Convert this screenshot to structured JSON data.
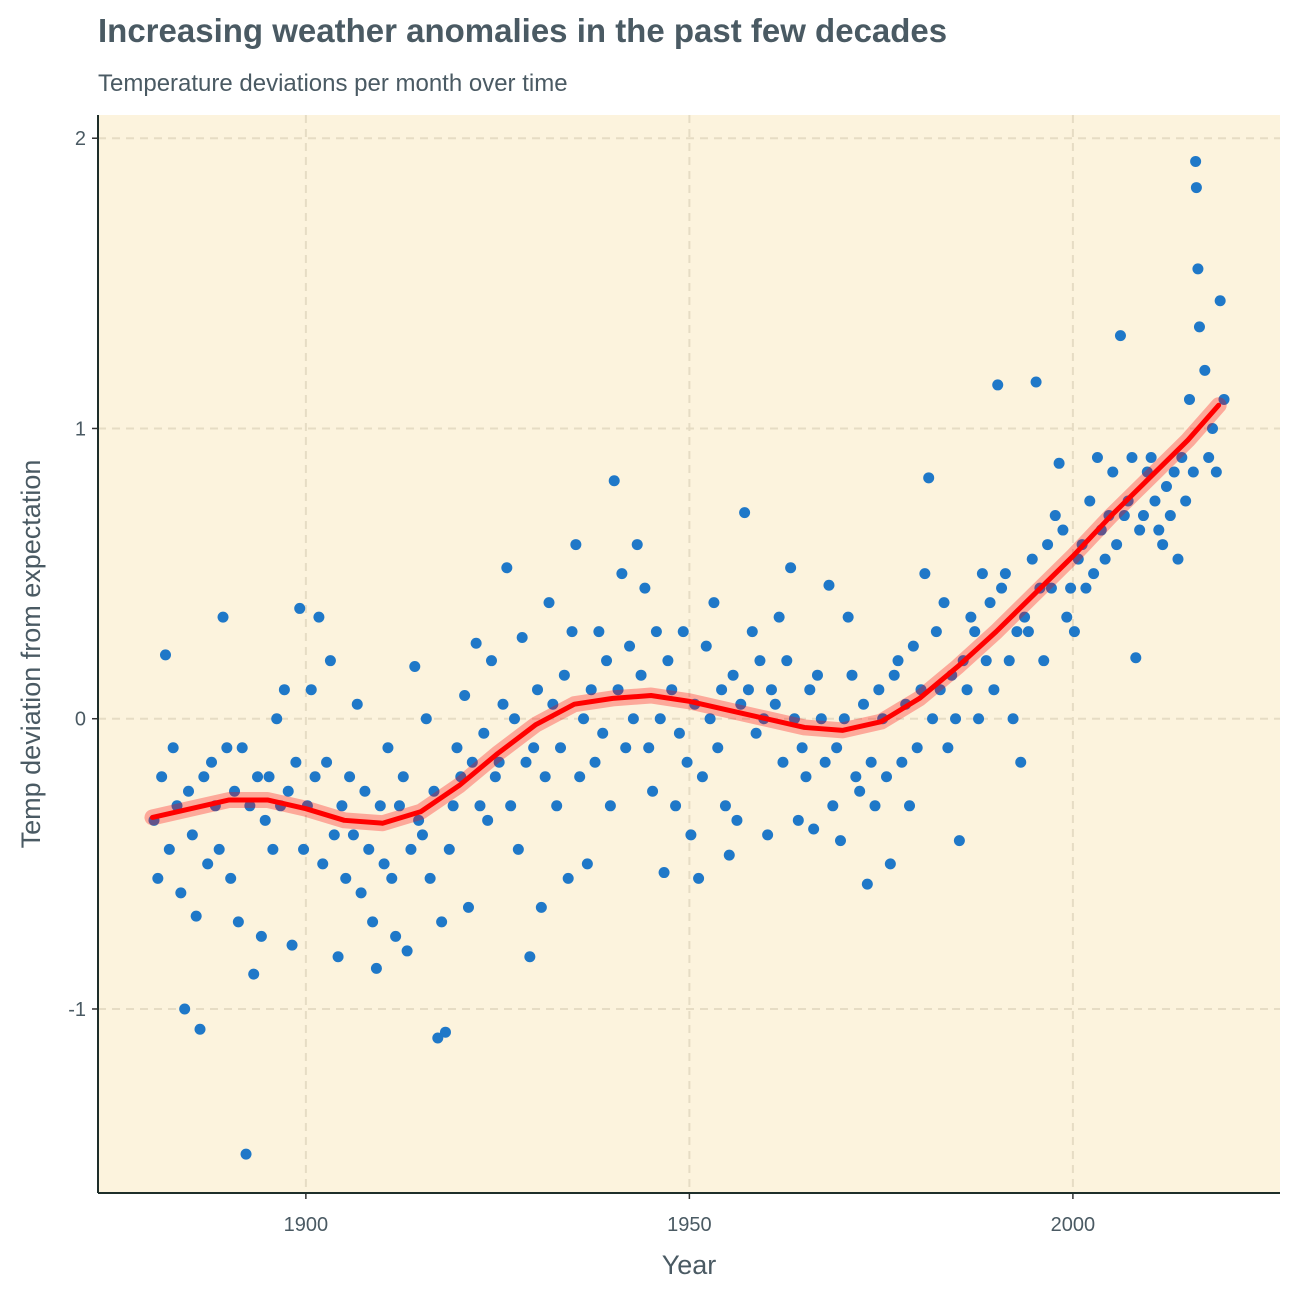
{
  "chart_data": {
    "type": "scatter",
    "title": "Increasing weather anomalies in the past few decades",
    "subtitle": "Temperature deviations per month over time",
    "x_label": "Year",
    "y_label": "Temp deviation from expectation",
    "xlim": [
      1872.9,
      2027
    ],
    "ylim": [
      -1.634,
      2.08
    ],
    "xticks": [
      1900,
      1950,
      2000
    ],
    "yticks": [
      -1,
      0,
      1,
      2
    ],
    "grid": true,
    "background": "#fcf3dd",
    "points": {
      "color": "#1f78c8",
      "x": [
        1880.2,
        1880.7,
        1881.2,
        1881.7,
        1882.2,
        1882.7,
        1883.2,
        1883.7,
        1884.2,
        1884.7,
        1885.2,
        1885.7,
        1886.2,
        1886.7,
        1887.2,
        1887.7,
        1888.2,
        1888.7,
        1889.2,
        1889.7,
        1890.2,
        1890.7,
        1891.2,
        1891.7,
        1892.2,
        1892.7,
        1893.2,
        1893.7,
        1894.2,
        1894.7,
        1895.2,
        1895.7,
        1896.2,
        1896.7,
        1897.2,
        1897.7,
        1898.2,
        1898.7,
        1899.2,
        1899.7,
        1900.2,
        1900.7,
        1901.2,
        1901.7,
        1902.2,
        1902.7,
        1903.2,
        1903.7,
        1904.2,
        1904.7,
        1905.2,
        1905.7,
        1906.2,
        1906.7,
        1907.2,
        1907.7,
        1908.2,
        1908.7,
        1909.2,
        1909.7,
        1910.2,
        1910.7,
        1911.2,
        1911.7,
        1912.2,
        1912.7,
        1913.2,
        1913.7,
        1914.2,
        1914.7,
        1915.2,
        1915.7,
        1916.2,
        1916.7,
        1917.2,
        1917.7,
        1918.2,
        1918.7,
        1919.2,
        1919.7,
        1920.2,
        1920.7,
        1921.2,
        1921.7,
        1922.2,
        1922.7,
        1923.2,
        1923.7,
        1924.2,
        1924.7,
        1925.2,
        1925.7,
        1926.2,
        1926.7,
        1927.2,
        1927.7,
        1928.2,
        1928.7,
        1929.2,
        1929.7,
        1930.2,
        1930.7,
        1931.2,
        1931.7,
        1932.2,
        1932.7,
        1933.2,
        1933.7,
        1934.2,
        1934.7,
        1935.2,
        1935.7,
        1936.2,
        1936.7,
        1937.2,
        1937.7,
        1938.2,
        1938.7,
        1939.2,
        1939.7,
        1940.2,
        1940.7,
        1941.2,
        1941.7,
        1942.2,
        1942.7,
        1943.2,
        1943.7,
        1944.2,
        1944.7,
        1945.2,
        1945.7,
        1946.2,
        1946.7,
        1947.2,
        1947.7,
        1948.2,
        1948.7,
        1949.2,
        1949.7,
        1950.2,
        1950.7,
        1951.2,
        1951.7,
        1952.2,
        1952.7,
        1953.2,
        1953.7,
        1954.2,
        1954.7,
        1955.2,
        1955.7,
        1956.2,
        1956.7,
        1957.2,
        1957.7,
        1958.2,
        1958.7,
        1959.2,
        1959.7,
        1960.2,
        1960.7,
        1961.2,
        1961.7,
        1962.2,
        1962.7,
        1963.2,
        1963.7,
        1964.2,
        1964.7,
        1965.2,
        1965.7,
        1966.2,
        1966.7,
        1967.2,
        1967.7,
        1968.2,
        1968.7,
        1969.2,
        1969.7,
        1970.2,
        1970.7,
        1971.2,
        1971.7,
        1972.2,
        1972.7,
        1973.2,
        1973.7,
        1974.2,
        1974.7,
        1975.2,
        1975.7,
        1976.2,
        1976.7,
        1977.2,
        1977.7,
        1978.2,
        1978.7,
        1979.2,
        1979.7,
        1980.2,
        1980.7,
        1981.2,
        1981.7,
        1982.2,
        1982.7,
        1983.2,
        1983.7,
        1984.2,
        1984.7,
        1985.2,
        1985.7,
        1986.2,
        1986.7,
        1987.2,
        1987.7,
        1988.2,
        1988.7,
        1989.2,
        1989.7,
        1990.2,
        1990.7,
        1991.2,
        1991.7,
        1992.2,
        1992.7,
        1993.2,
        1993.7,
        1994.2,
        1994.7,
        1995.2,
        1995.7,
        1996.2,
        1996.7,
        1997.2,
        1997.7,
        1998.2,
        1998.7,
        1999.2,
        1999.7,
        2000.2,
        2000.7,
        2001.2,
        2001.7,
        2002.2,
        2002.7,
        2003.2,
        2003.7,
        2004.2,
        2004.7,
        2005.2,
        2005.7,
        2006.2,
        2006.7,
        2007.2,
        2007.7,
        2008.2,
        2008.7,
        2009.2,
        2009.7,
        2010.2,
        2010.7,
        2011.2,
        2011.7,
        2012.2,
        2012.7,
        2013.2,
        2013.7,
        2014.2,
        2014.7,
        2015.2,
        2015.7,
        2016.0,
        2016.1,
        2016.3,
        2016.5,
        2017.2,
        2017.7,
        2018.2,
        2018.7,
        2019.2,
        2019.7
      ],
      "values": [
        -0.35,
        -0.55,
        -0.2,
        0.22,
        -0.45,
        -0.1,
        -0.3,
        -0.6,
        -1.0,
        -0.25,
        -0.4,
        -0.68,
        -1.07,
        -0.2,
        -0.5,
        -0.15,
        -0.3,
        -0.45,
        0.35,
        -0.1,
        -0.55,
        -0.25,
        -0.7,
        -0.1,
        -1.5,
        -0.3,
        -0.88,
        -0.2,
        -0.75,
        -0.35,
        -0.2,
        -0.45,
        0.0,
        -0.3,
        0.1,
        -0.25,
        -0.78,
        -0.15,
        0.38,
        -0.45,
        -0.3,
        0.1,
        -0.2,
        0.35,
        -0.5,
        -0.15,
        0.2,
        -0.4,
        -0.82,
        -0.3,
        -0.55,
        -0.2,
        -0.4,
        0.05,
        -0.6,
        -0.25,
        -0.45,
        -0.7,
        -0.86,
        -0.3,
        -0.5,
        -0.1,
        -0.55,
        -0.75,
        -0.3,
        -0.2,
        -0.8,
        -0.45,
        0.18,
        -0.35,
        -0.4,
        0.0,
        -0.55,
        -0.25,
        -1.1,
        -0.7,
        -1.08,
        -0.45,
        -0.3,
        -0.1,
        -0.2,
        0.08,
        -0.65,
        -0.15,
        0.26,
        -0.3,
        -0.05,
        -0.35,
        0.2,
        -0.2,
        -0.15,
        0.05,
        0.52,
        -0.3,
        0.0,
        -0.45,
        0.28,
        -0.15,
        -0.82,
        -0.1,
        0.1,
        -0.65,
        -0.2,
        0.4,
        0.05,
        -0.3,
        -0.1,
        0.15,
        -0.55,
        0.3,
        0.6,
        -0.2,
        0.0,
        -0.5,
        0.1,
        -0.15,
        0.3,
        -0.05,
        0.2,
        -0.3,
        0.82,
        0.1,
        0.5,
        -0.1,
        0.25,
        0.0,
        0.6,
        0.15,
        0.45,
        -0.1,
        -0.25,
        0.3,
        0.0,
        -0.53,
        0.2,
        0.1,
        -0.3,
        -0.05,
        0.3,
        -0.15,
        -0.4,
        0.05,
        -0.55,
        -0.2,
        0.25,
        0.0,
        0.4,
        -0.1,
        0.1,
        -0.3,
        -0.47,
        0.15,
        -0.35,
        0.05,
        0.71,
        0.1,
        0.3,
        -0.05,
        0.2,
        0.0,
        -0.4,
        0.1,
        0.05,
        0.35,
        -0.15,
        0.2,
        0.52,
        0.0,
        -0.35,
        -0.1,
        -0.2,
        0.1,
        -0.38,
        0.15,
        0.0,
        -0.15,
        0.46,
        -0.3,
        -0.1,
        -0.42,
        0.0,
        0.35,
        0.15,
        -0.2,
        -0.25,
        0.05,
        -0.57,
        -0.15,
        -0.3,
        0.1,
        0.0,
        -0.2,
        -0.5,
        0.15,
        0.2,
        -0.15,
        0.05,
        -0.3,
        0.25,
        -0.1,
        0.1,
        0.5,
        0.83,
        0.0,
        0.3,
        0.1,
        0.4,
        -0.1,
        0.15,
        0.0,
        -0.42,
        0.2,
        0.1,
        0.35,
        0.3,
        0.0,
        0.5,
        0.2,
        0.4,
        0.1,
        1.15,
        0.45,
        0.5,
        0.2,
        0.0,
        0.3,
        -0.15,
        0.35,
        0.3,
        0.55,
        1.16,
        0.45,
        0.2,
        0.6,
        0.45,
        0.7,
        0.88,
        0.65,
        0.35,
        0.45,
        0.3,
        0.55,
        0.6,
        0.45,
        0.75,
        0.5,
        0.9,
        0.65,
        0.55,
        0.7,
        0.85,
        0.6,
        1.32,
        0.7,
        0.75,
        0.9,
        0.21,
        0.65,
        0.7,
        0.85,
        0.9,
        0.75,
        0.65,
        0.6,
        0.8,
        0.7,
        0.85,
        0.55,
        0.9,
        0.75,
        1.1,
        0.85,
        1.92,
        1.83,
        1.55,
        1.35,
        1.2,
        0.9,
        1.0,
        0.85,
        1.44,
        1.1
      ]
    },
    "trend": {
      "color": "#ff0000",
      "x": [
        1880,
        1885,
        1890,
        1895,
        1900,
        1905,
        1910,
        1915,
        1920,
        1925,
        1930,
        1935,
        1940,
        1945,
        1950,
        1955,
        1960,
        1965,
        1970,
        1975,
        1980,
        1985,
        1990,
        1995,
        2000,
        2005,
        2010,
        2015,
        2019
      ],
      "values": [
        -0.34,
        -0.31,
        -0.28,
        -0.28,
        -0.31,
        -0.35,
        -0.36,
        -0.32,
        -0.23,
        -0.12,
        -0.02,
        0.05,
        0.07,
        0.08,
        0.06,
        0.03,
        0.0,
        -0.03,
        -0.04,
        -0.01,
        0.07,
        0.18,
        0.3,
        0.43,
        0.56,
        0.7,
        0.83,
        0.96,
        1.08
      ]
    }
  }
}
